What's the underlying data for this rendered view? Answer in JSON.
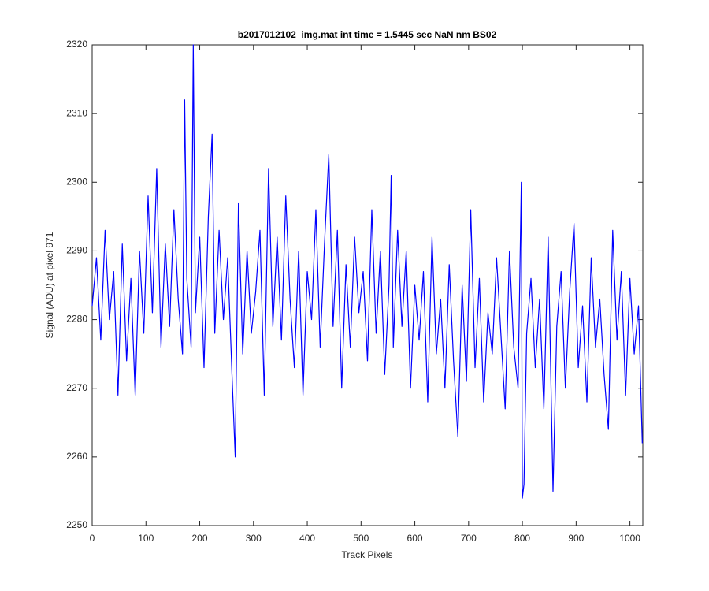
{
  "chart_data": {
    "type": "line",
    "title": "b2017012102_img.mat int time = 1.5445 sec  NaN nm BS02",
    "x_label": "Track Pixels",
    "y_label": "Signal (ADU) at pixel 971",
    "xlim": [
      0,
      1024
    ],
    "ylim": [
      2250,
      2320
    ],
    "xticks": [
      0,
      100,
      200,
      300,
      400,
      500,
      600,
      700,
      800,
      900,
      1000
    ],
    "yticks": [
      2250,
      2260,
      2270,
      2280,
      2290,
      2300,
      2310,
      2320
    ],
    "grid": false,
    "x": [
      0,
      8,
      16,
      24,
      32,
      40,
      48,
      56,
      64,
      72,
      80,
      88,
      96,
      104,
      112,
      120,
      128,
      136,
      144,
      152,
      160,
      168,
      172,
      176,
      184,
      188,
      192,
      200,
      208,
      216,
      223,
      228,
      236,
      244,
      252,
      260,
      266,
      272,
      280,
      288,
      296,
      304,
      312,
      320,
      328,
      336,
      344,
      352,
      360,
      368,
      376,
      384,
      392,
      400,
      408,
      416,
      424,
      432,
      440,
      448,
      456,
      464,
      472,
      480,
      488,
      496,
      504,
      512,
      520,
      528,
      536,
      544,
      552,
      556,
      560,
      568,
      576,
      584,
      592,
      600,
      608,
      616,
      624,
      632,
      640,
      648,
      656,
      664,
      672,
      680,
      688,
      696,
      704,
      712,
      720,
      728,
      736,
      744,
      752,
      760,
      768,
      776,
      784,
      792,
      798,
      800,
      803,
      808,
      816,
      824,
      832,
      840,
      848,
      857,
      864,
      872,
      880,
      888,
      896,
      904,
      912,
      920,
      928,
      936,
      944,
      952,
      960,
      968,
      976,
      984,
      992,
      1000,
      1008,
      1016,
      1023
    ],
    "series": [
      {
        "name": "signal",
        "color": "#0000ff",
        "values": [
          2282,
          2289,
          2277,
          2293,
          2280,
          2287,
          2269,
          2291,
          2274,
          2286,
          2269,
          2290,
          2278,
          2298,
          2281,
          2302,
          2276,
          2291,
          2279,
          2296,
          2283,
          2275,
          2312,
          2286,
          2276,
          2320,
          2281,
          2292,
          2273,
          2295,
          2307,
          2278,
          2293,
          2280,
          2289,
          2272,
          2260,
          2297,
          2275,
          2290,
          2278,
          2284,
          2293,
          2269,
          2302,
          2279,
          2292,
          2277,
          2298,
          2283,
          2273,
          2290,
          2269,
          2287,
          2280,
          2296,
          2276,
          2291,
          2304,
          2279,
          2293,
          2270,
          2288,
          2276,
          2292,
          2281,
          2287,
          2274,
          2296,
          2278,
          2290,
          2272,
          2285,
          2301,
          2276,
          2293,
          2279,
          2290,
          2270,
          2285,
          2277,
          2287,
          2268,
          2292,
          2275,
          2283,
          2270,
          2288,
          2274,
          2263,
          2285,
          2271,
          2296,
          2273,
          2286,
          2268,
          2281,
          2275,
          2289,
          2278,
          2267,
          2290,
          2276,
          2270,
          2300,
          2254,
          2256,
          2278,
          2286,
          2273,
          2283,
          2267,
          2292,
          2255,
          2279,
          2287,
          2270,
          2284,
          2294,
          2273,
          2282,
          2268,
          2289,
          2276,
          2283,
          2272,
          2264,
          2293,
          2277,
          2287,
          2269,
          2286,
          2275,
          2282,
          2262
        ]
      }
    ]
  }
}
